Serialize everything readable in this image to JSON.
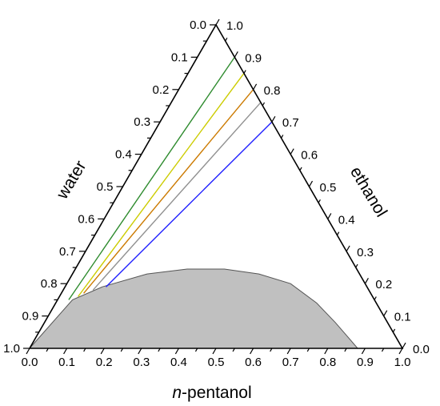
{
  "chart_data": {
    "type": "ternary",
    "axes": {
      "bottom": {
        "label_prefix": "n",
        "label_rest": "-pentanol",
        "ticks": [
          "0.0",
          "0.1",
          "0.2",
          "0.3",
          "0.4",
          "0.5",
          "0.6",
          "0.7",
          "0.8",
          "0.9",
          "1.0"
        ]
      },
      "left": {
        "label": "water",
        "ticks": [
          "0.0",
          "0.1",
          "0.2",
          "0.3",
          "0.4",
          "0.5",
          "0.6",
          "0.7",
          "0.8",
          "0.9",
          "1.0"
        ]
      },
      "right": {
        "label": "ethanol",
        "ticks": [
          "0.0",
          "0.1",
          "0.2",
          "0.3",
          "0.4",
          "0.5",
          "0.6",
          "0.7",
          "0.8",
          "0.9",
          "1.0"
        ]
      }
    },
    "binodal_region": {
      "color": "#c0c0c0",
      "edge_color": "#555555",
      "points": [
        {
          "pentanol": 0.0,
          "ethanol": 0.0
        },
        {
          "pentanol": 0.04,
          "ethanol": 0.15
        },
        {
          "pentanol": 0.1,
          "ethanol": 0.19
        },
        {
          "pentanol": 0.2,
          "ethanol": 0.23
        },
        {
          "pentanol": 0.3,
          "ethanol": 0.245
        },
        {
          "pentanol": 0.4,
          "ethanol": 0.245
        },
        {
          "pentanol": 0.5,
          "ethanol": 0.23
        },
        {
          "pentanol": 0.6,
          "ethanol": 0.2
        },
        {
          "pentanol": 0.7,
          "ethanol": 0.14
        },
        {
          "pentanol": 0.78,
          "ethanol": 0.08
        },
        {
          "pentanol": 0.83,
          "ethanol": 0.04
        },
        {
          "pentanol": 0.88,
          "ethanol": 0.0
        }
      ]
    },
    "tie_lines": [
      {
        "color": "#2e8b2e",
        "start": {
          "pentanol": 0.03,
          "ethanol": 0.15
        },
        "end": {
          "pentanol": 0.1,
          "ethanol": 0.9
        }
      },
      {
        "color": "#cccc00",
        "start": {
          "pentanol": 0.05,
          "ethanol": 0.16
        },
        "end": {
          "pentanol": 0.15,
          "ethanol": 0.85
        }
      },
      {
        "color": "#cc7a00",
        "start": {
          "pentanol": 0.06,
          "ethanol": 0.17
        },
        "end": {
          "pentanol": 0.2,
          "ethanol": 0.8
        }
      },
      {
        "color": "#909090",
        "start": {
          "pentanol": 0.08,
          "ethanol": 0.18
        },
        "end": {
          "pentanol": 0.24,
          "ethanol": 0.76
        }
      },
      {
        "color": "#2020ff",
        "start": {
          "pentanol": 0.11,
          "ethanol": 0.19
        },
        "end": {
          "pentanol": 0.3,
          "ethanol": 0.7
        }
      }
    ]
  }
}
